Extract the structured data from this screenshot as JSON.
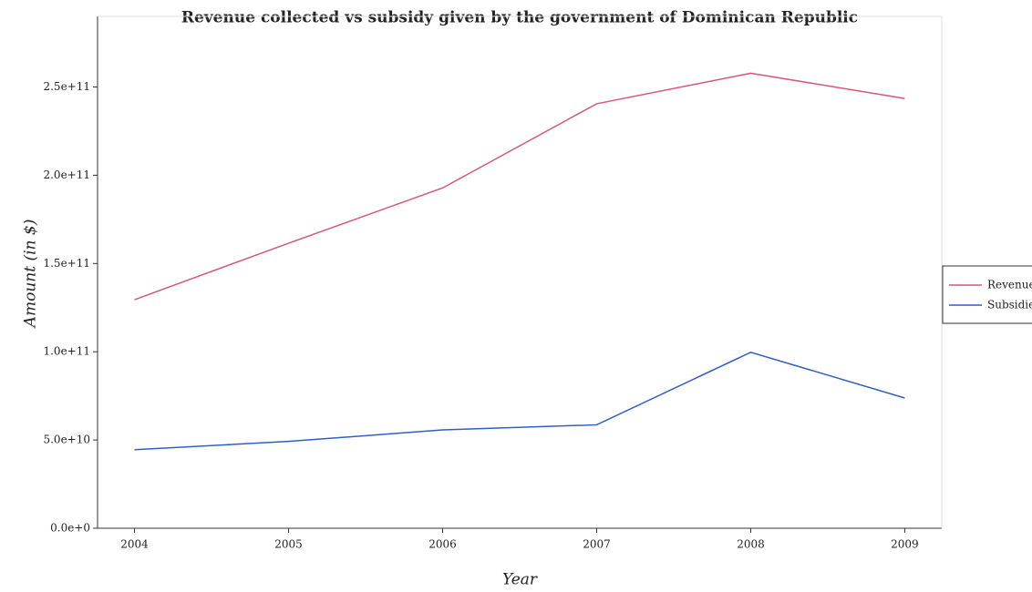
{
  "chart_data": {
    "type": "line",
    "title": "Revenue collected vs subsidy given by the government of Dominican Republic",
    "x_label": "Year",
    "y_label": "Amount (in $)",
    "x": [
      2004,
      2005,
      2006,
      2007,
      2008,
      2009
    ],
    "series": [
      {
        "name": "Revenue",
        "color": "#d6577a",
        "values": [
          129500000000,
          161500000000,
          192800000000,
          240500000000,
          257800000000,
          243500000000
        ]
      },
      {
        "name": "Subsidies",
        "color": "#2f5fc4",
        "values": [
          44500000000,
          49200000000,
          55700000000,
          58600000000,
          99700000000,
          73800000000
        ]
      }
    ],
    "xlim": [
      2003.76,
      2009.24
    ],
    "xticks": [
      2004,
      2005,
      2006,
      2007,
      2008,
      2009
    ],
    "ylim": [
      0,
      290000000000
    ],
    "yticks": [
      {
        "value": 0,
        "label": "0.0e+0"
      },
      {
        "value": 50000000000,
        "label": "5.0e+10"
      },
      {
        "value": 100000000000,
        "label": "1.0e+11"
      },
      {
        "value": 150000000000,
        "label": "1.5e+11"
      },
      {
        "value": 200000000000,
        "label": "2.0e+11"
      },
      {
        "value": 250000000000,
        "label": "2.5e+11"
      }
    ],
    "legend": "right"
  }
}
